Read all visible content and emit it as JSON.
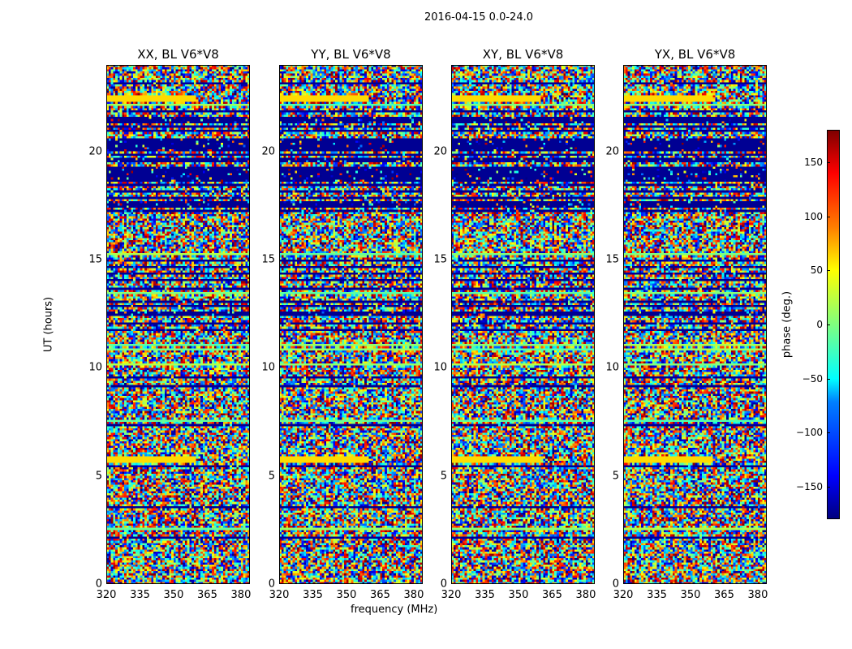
{
  "chart_data": {
    "type": "heatmap",
    "title": "2016-04-15 0.0-24.0",
    "panels": [
      {
        "title": "XX, BL V6*V8"
      },
      {
        "title": "YY, BL V6*V8"
      },
      {
        "title": "XY, BL V6*V8"
      },
      {
        "title": "YX, BL V6*V8"
      }
    ],
    "xlabel": "frequency (MHz)",
    "ylabel": "UT (hours)",
    "xlim": [
      320,
      384
    ],
    "ylim": [
      0,
      24
    ],
    "xticks": [
      "320",
      "335",
      "350",
      "365",
      "380"
    ],
    "yticks": [
      "0",
      "5",
      "10",
      "15",
      "20"
    ],
    "colorbar": {
      "label": "phase (deg.)",
      "range": [
        -180,
        180
      ],
      "ticks": [
        "150",
        "100",
        "50",
        "0",
        "−50",
        "−100",
        "−150"
      ],
      "colormap": "jet"
    }
  }
}
